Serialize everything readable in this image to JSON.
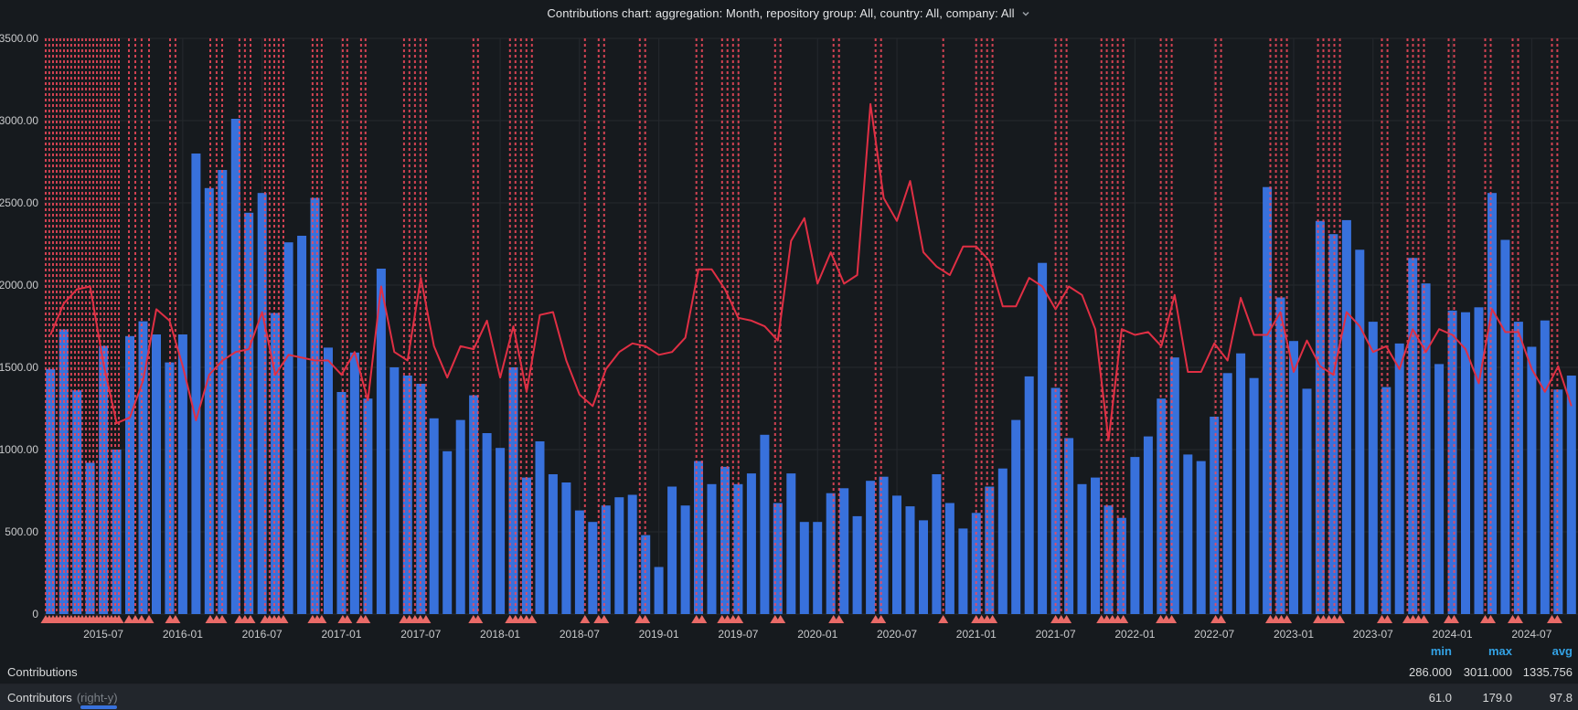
{
  "header": {
    "title": "Contributions chart: aggregation: Month, repository group: All, country: All, company: All"
  },
  "legend": {
    "columns": [
      "min",
      "max",
      "avg"
    ],
    "rows": [
      {
        "label": "Contributions",
        "suffix": "",
        "min": "286.000",
        "max": "3011.000",
        "avg": "1335.756"
      },
      {
        "label": "Contributors",
        "suffix": "(right-y)",
        "min": "61.0",
        "max": "179.0",
        "avg": "97.8"
      }
    ]
  },
  "colors": {
    "background": "#161a1e",
    "bar_blue": "#3871dc",
    "line_red": "#e02f44",
    "annotation_red": "#f2495c",
    "annotation_marker": "#e96a67",
    "grid": "#25292e",
    "axis_text": "#c9cacc",
    "legend_header_blue": "#33a2e5"
  },
  "chart_data": {
    "type": "bar",
    "title": "Contributions chart: aggregation: Month, repository group: All, country: All, company: All",
    "x_unit": "month",
    "start_month": "2015-03",
    "ylim_left": [
      0,
      3500
    ],
    "right_axis_implied_max": 202,
    "grid": true,
    "legend_position": "bottom-table",
    "y_ticks": [
      "3500.00",
      "3000.00",
      "2500.00",
      "2000.00",
      "1500.00",
      "1000.00",
      "500.00",
      "0"
    ],
    "x_ticks": [
      {
        "label": "2015-07",
        "month_index": 4
      },
      {
        "label": "2016-01",
        "month_index": 10
      },
      {
        "label": "2016-07",
        "month_index": 16
      },
      {
        "label": "2017-01",
        "month_index": 22
      },
      {
        "label": "2017-07",
        "month_index": 28
      },
      {
        "label": "2018-01",
        "month_index": 34
      },
      {
        "label": "2018-07",
        "month_index": 40
      },
      {
        "label": "2019-01",
        "month_index": 46
      },
      {
        "label": "2019-07",
        "month_index": 52
      },
      {
        "label": "2020-01",
        "month_index": 58
      },
      {
        "label": "2020-07",
        "month_index": 64
      },
      {
        "label": "2021-01",
        "month_index": 70
      },
      {
        "label": "2021-07",
        "month_index": 76
      },
      {
        "label": "2022-01",
        "month_index": 82
      },
      {
        "label": "2022-07",
        "month_index": 88
      },
      {
        "label": "2023-01",
        "month_index": 94
      },
      {
        "label": "2023-07",
        "month_index": 100
      },
      {
        "label": "2024-01",
        "month_index": 106
      },
      {
        "label": "2024-07",
        "month_index": 112
      }
    ],
    "series": [
      {
        "name": "Contributions",
        "type": "bar",
        "axis": "left",
        "color": "#3871dc",
        "stats": {
          "min": 286.0,
          "max": 3011.0,
          "avg": 1335.756
        },
        "values": [
          1490,
          1730,
          1360,
          920,
          1630,
          1000,
          1690,
          1780,
          1700,
          1530,
          1700,
          2800,
          2590,
          2700,
          3011,
          2440,
          2560,
          1830,
          2260,
          2300,
          2530,
          1620,
          1350,
          1590,
          1310,
          2100,
          1500,
          1450,
          1400,
          1190,
          990,
          1180,
          1330,
          1100,
          1010,
          1500,
          830,
          1050,
          850,
          800,
          630,
          560,
          660,
          710,
          725,
          480,
          286,
          775,
          660,
          930,
          790,
          895,
          790,
          855,
          1090,
          675,
          855,
          560,
          560,
          735,
          765,
          595,
          810,
          835,
          720,
          655,
          570,
          850,
          675,
          520,
          615,
          775,
          885,
          1180,
          1445,
          2135,
          1375,
          1070,
          790,
          830,
          660,
          585,
          955,
          1080,
          1310,
          1560,
          970,
          930,
          1200,
          1465,
          1585,
          1435,
          2596,
          1925,
          1660,
          1370,
          2390,
          2310,
          2395,
          2215,
          1777,
          1380,
          1645,
          2165,
          2010,
          1520,
          1845,
          1835,
          1865,
          2560,
          2275,
          1777,
          1625,
          1785,
          1365,
          1450
        ]
      },
      {
        "name": "Contributors",
        "type": "line",
        "axis": "right",
        "color": "#e02f44",
        "left_axis_units_per_value": 17.32,
        "stats": {
          "min": 61.0,
          "max": 179.0,
          "avg": 97.8
        },
        "values": [
          98,
          109,
          114,
          115,
          88,
          67,
          69,
          82,
          107,
          103,
          87,
          68,
          84,
          89,
          92,
          93,
          106,
          84,
          91,
          90,
          89,
          89,
          84,
          92,
          75,
          115,
          92,
          89,
          118,
          94,
          83,
          94,
          93,
          103,
          83,
          101,
          78,
          105,
          106,
          89,
          77,
          73,
          86,
          92,
          95,
          94,
          91,
          92,
          97,
          121,
          121,
          114,
          104,
          103,
          101,
          96,
          131,
          139,
          116,
          127,
          116,
          119,
          179,
          146,
          138,
          152,
          127,
          122,
          119,
          129,
          129,
          124,
          108,
          108,
          118,
          115,
          107,
          115,
          112,
          100,
          61,
          100,
          98,
          99,
          94,
          112,
          85,
          85,
          95,
          89,
          111,
          98,
          98,
          106,
          85,
          96,
          87,
          84,
          106,
          101,
          92,
          94,
          86,
          100,
          92,
          100,
          98,
          93,
          81,
          107,
          99,
          99,
          86,
          78,
          87,
          73
        ]
      }
    ],
    "annotations": {
      "style": "dashed-vertical-line",
      "color": "#f2495c",
      "marker_color": "#e96a67",
      "positions_month_index": [
        -0.36,
        -0.09,
        0.19,
        0.47,
        0.74,
        1.02,
        1.3,
        1.57,
        1.85,
        2.13,
        2.4,
        2.68,
        2.96,
        3.23,
        3.51,
        3.78,
        4.06,
        4.34,
        4.61,
        4.89,
        5.17,
        5.93,
        6.41,
        6.89,
        7.45,
        9.04,
        9.45,
        12.08,
        12.56,
        12.98,
        14.29,
        14.7,
        15.12,
        16.22,
        16.57,
        16.92,
        17.26,
        17.61,
        19.82,
        20.16,
        20.51,
        22.1,
        22.44,
        23.48,
        23.82,
        26.73,
        27.14,
        27.56,
        27.97,
        28.39,
        31.98,
        32.32,
        34.74,
        35.16,
        35.57,
        35.99,
        36.4,
        40.41,
        41.45,
        41.86,
        44.56,
        44.97,
        48.84,
        49.26,
        50.78,
        51.19,
        51.61,
        52.02,
        54.79,
        55.2,
        59.21,
        59.62,
        62.39,
        62.8,
        67.5,
        69.99,
        70.4,
        70.82,
        71.23,
        76.0,
        76.42,
        76.83,
        79.46,
        79.87,
        80.29,
        80.7,
        81.12,
        83.95,
        84.37,
        84.78,
        88.1,
        88.51,
        92.24,
        92.66,
        93.07,
        93.49,
        95.84,
        96.25,
        96.67,
        97.08,
        97.5,
        100.67,
        101.09,
        102.61,
        103.02,
        103.44,
        103.85,
        105.72,
        106.13,
        108.48,
        108.9,
        110.56,
        110.97,
        113.53,
        113.94
      ]
    }
  }
}
